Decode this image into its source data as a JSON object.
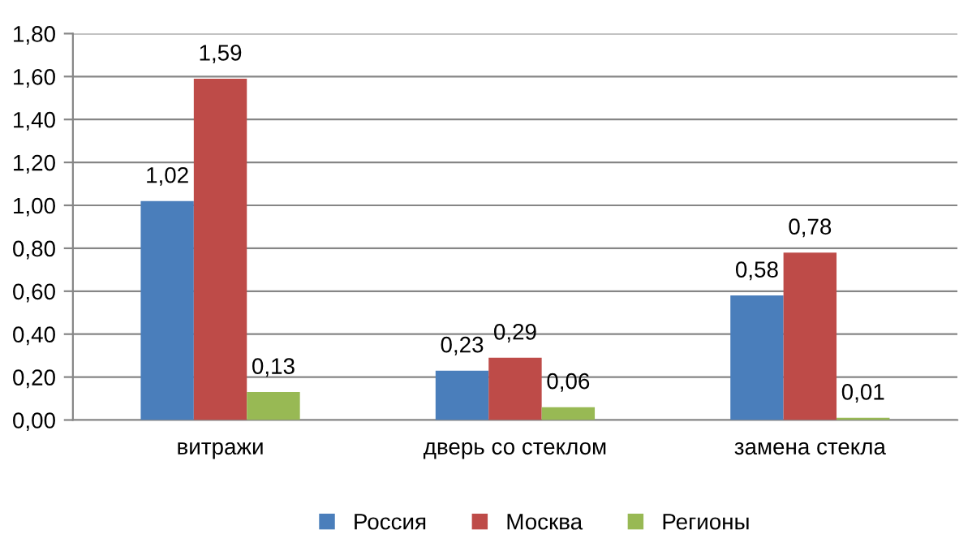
{
  "chart_data": {
    "type": "bar",
    "categories": [
      "витражи",
      "дверь со стеклом",
      "замена стекла"
    ],
    "series": [
      {
        "name": "Россия",
        "color": "#4a7ebb",
        "values": [
          1.02,
          0.23,
          0.58
        ],
        "value_labels": [
          "1,02",
          "0,23",
          "0,58"
        ]
      },
      {
        "name": "Москва",
        "color": "#be4b48",
        "values": [
          1.59,
          0.29,
          0.78
        ],
        "value_labels": [
          "1,59",
          "0,29",
          "0,78"
        ]
      },
      {
        "name": "Регионы",
        "color": "#98b954",
        "values": [
          0.13,
          0.06,
          0.01
        ],
        "value_labels": [
          "0,13",
          "0,06",
          "0,01"
        ]
      }
    ],
    "ylim": [
      0,
      1.8
    ],
    "yticks": [
      {
        "value": 0,
        "label": "0,00"
      },
      {
        "value": 0.2,
        "label": "0,20"
      },
      {
        "value": 0.4,
        "label": "0,40"
      },
      {
        "value": 0.6,
        "label": "0,60"
      },
      {
        "value": 0.8,
        "label": "0,80"
      },
      {
        "value": 1.0,
        "label": "1,00"
      },
      {
        "value": 1.2,
        "label": "1,20"
      },
      {
        "value": 1.4,
        "label": "1,40"
      },
      {
        "value": 1.6,
        "label": "1,60"
      },
      {
        "value": 1.8,
        "label": "1,80"
      }
    ],
    "grid": "y",
    "legend": "bottom"
  }
}
